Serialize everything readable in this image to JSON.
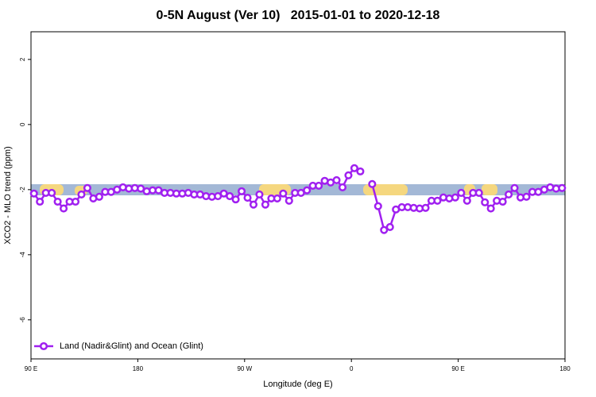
{
  "chart_data": {
    "type": "line",
    "title": "0-5N August (Ver 10)   2015-01-01 to 2020-12-18",
    "x_label": "Longitude (deg E)",
    "y_label": "XCO2 - MLO trend (ppm)",
    "x": [
      92.5,
      97.5,
      102.5,
      107.5,
      112.5,
      117.5,
      122.5,
      127.5,
      132.5,
      137.5,
      142.5,
      147.5,
      152.5,
      157.5,
      162.5,
      167.5,
      172.5,
      177.5,
      182.5,
      187.5,
      192.5,
      197.5,
      202.5,
      207.5,
      212.5,
      217.5,
      222.5,
      227.5,
      232.5,
      237.5,
      242.5,
      247.5,
      252.5,
      257.5,
      262.5,
      267.5,
      272.5,
      277.5,
      282.5,
      287.5,
      292.5,
      297.5,
      302.5,
      307.5,
      312.5,
      317.5,
      322.5,
      327.5,
      332.5,
      337.5,
      342.5,
      347.5,
      352.5,
      357.5,
      362.5,
      367.5,
      372.5,
      377.5,
      382.5,
      387.5,
      392.5,
      397.5,
      402.5,
      407.5,
      412.5,
      417.5,
      422.5,
      427.5,
      432.5,
      437.5,
      442.5,
      447.5,
      452.5,
      457.5,
      462.5,
      467.5,
      472.5,
      477.5,
      482.5,
      487.5,
      492.5,
      497.5,
      502.5,
      507.5,
      512.5,
      517.5,
      522.5,
      527.5,
      532.5,
      537.5
    ],
    "series": [
      {
        "name": "Land (Nadir&Glint) and Ocean (Glint)",
        "color": "#a020f0",
        "values": [
          -2.12,
          -2.37,
          -2.1,
          -2.1,
          -2.37,
          -2.58,
          -2.37,
          -2.37,
          -2.15,
          -1.95,
          -2.27,
          -2.22,
          -2.07,
          -2.07,
          -2.0,
          -1.93,
          -1.97,
          -1.95,
          -1.97,
          -2.05,
          -2.02,
          -2.02,
          -2.1,
          -2.1,
          -2.12,
          -2.12,
          -2.1,
          -2.15,
          -2.15,
          -2.2,
          -2.22,
          -2.2,
          -2.12,
          -2.2,
          -2.3,
          -2.05,
          -2.25,
          -2.46,
          -2.15,
          -2.46,
          -2.27,
          -2.27,
          -2.12,
          -2.34,
          -2.1,
          -2.1,
          -2.02,
          -1.88,
          -1.88,
          -1.73,
          -1.78,
          -1.71,
          -1.93,
          -1.56,
          -1.34,
          -1.44,
          null,
          -1.83,
          -2.51,
          -3.24,
          -3.15,
          -2.61,
          -2.54,
          -2.54,
          -2.56,
          -2.58,
          -2.56,
          -2.34,
          -2.34,
          -2.24,
          -2.27,
          -2.24,
          -2.1,
          -2.34,
          -2.1,
          -2.1,
          -2.39,
          -2.58,
          -2.34,
          -2.37,
          -2.15,
          -1.95,
          -2.24,
          -2.22,
          -2.07,
          -2.07,
          -2.0,
          -1.93,
          -1.97,
          -1.95
        ]
      }
    ],
    "xlim": [
      90,
      540
    ],
    "xticks": [
      {
        "value": 90,
        "label": "90 E"
      },
      180,
      {
        "value": 270,
        "label": "90 W"
      },
      {
        "value": 360,
        "label": "0"
      },
      {
        "value": 450,
        "label": "90 E"
      },
      {
        "value": 540,
        "label": "180"
      }
    ],
    "ylim": [
      -7.2,
      2.85
    ],
    "yticks": [
      -6,
      -4,
      -2,
      0,
      2
    ],
    "grid": false,
    "legend": "lower left"
  }
}
